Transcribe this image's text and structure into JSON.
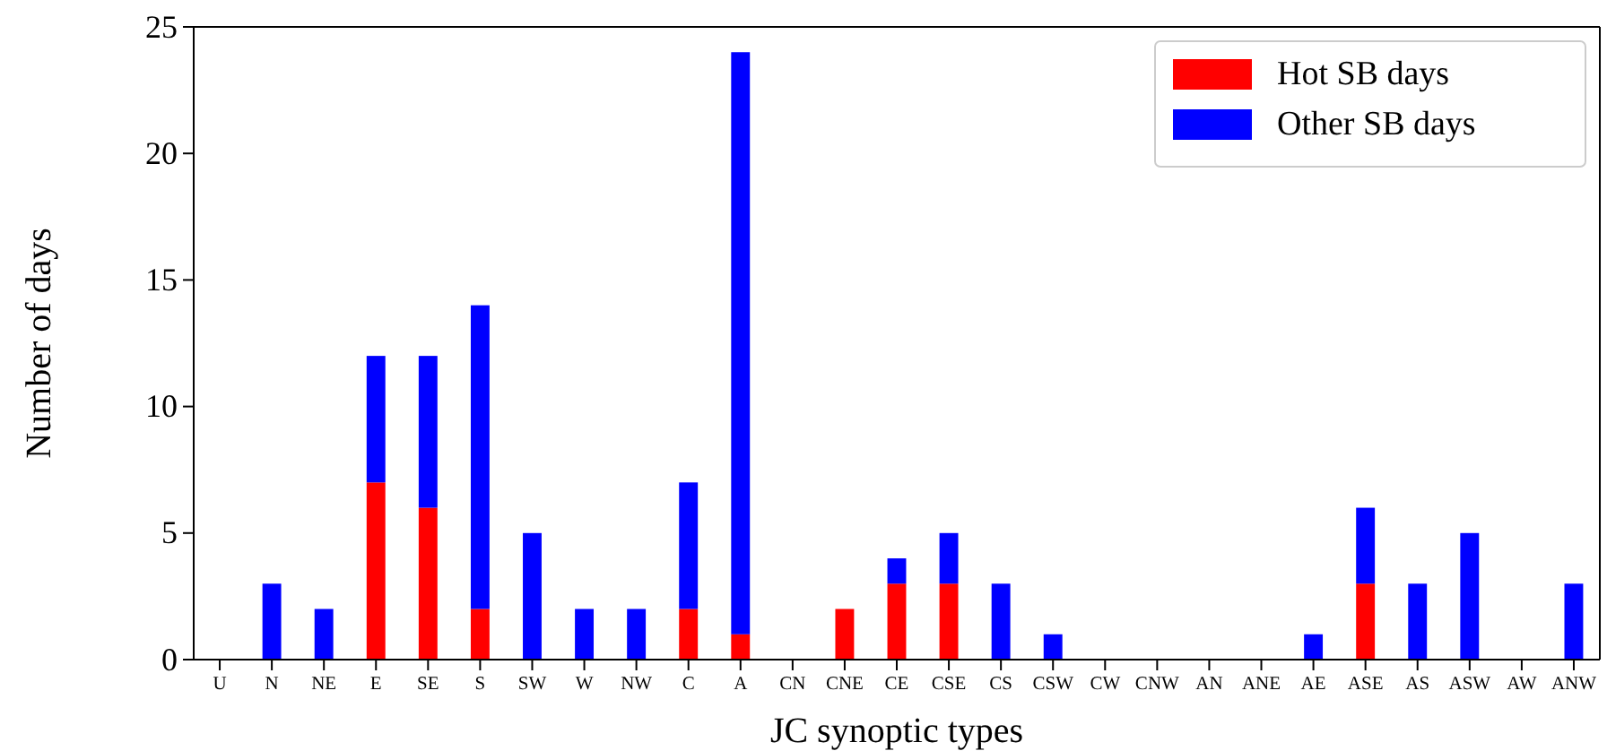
{
  "chart_data": {
    "type": "bar",
    "stacked": true,
    "xlabel": "JC synoptic types",
    "ylabel": "Number of days",
    "categories": [
      "U",
      "N",
      "NE",
      "E",
      "SE",
      "S",
      "SW",
      "W",
      "NW",
      "C",
      "A",
      "CN",
      "CNE",
      "CE",
      "CSE",
      "CS",
      "CSW",
      "CW",
      "CNW",
      "AN",
      "ANE",
      "AE",
      "ASE",
      "AS",
      "ASW",
      "AW",
      "ANW"
    ],
    "series": [
      {
        "name": "Hot SB days",
        "color": "#ff0000",
        "values": [
          0,
          0,
          0,
          7,
          6,
          2,
          0,
          0,
          0,
          2,
          1,
          0,
          2,
          3,
          3,
          0,
          0,
          0,
          0,
          0,
          0,
          0,
          3,
          0,
          0,
          0,
          0
        ]
      },
      {
        "name": "Other SB days",
        "color": "#0000ff",
        "values": [
          0,
          3,
          2,
          5,
          6,
          12,
          5,
          2,
          2,
          5,
          23,
          0,
          0,
          1,
          2,
          3,
          1,
          0,
          0,
          0,
          0,
          1,
          3,
          3,
          5,
          0,
          3
        ]
      }
    ],
    "ylim": [
      0,
      25
    ],
    "yticks": [
      0,
      5,
      10,
      15,
      20,
      25
    ],
    "legend": "top right",
    "grid": false
  }
}
